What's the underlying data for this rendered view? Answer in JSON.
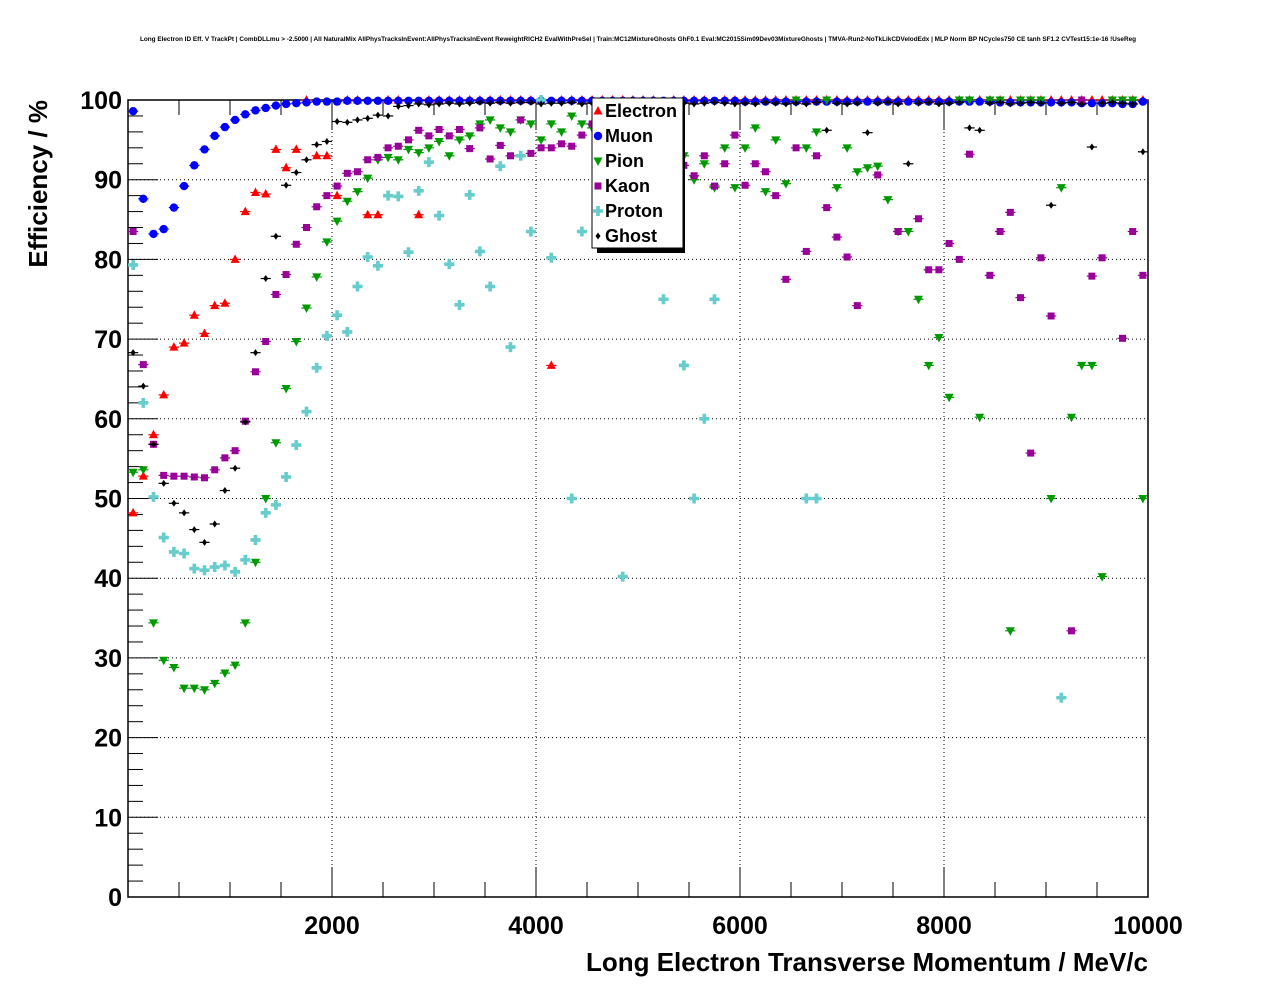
{
  "chart_data": {
    "type": "scatter",
    "title": "Long Electron ID Eff. V TrackPt | CombDLLmu > -2.5000 | All NaturalMix AllPhysTracksInEvent:AllPhysTracksInEvent ReweightRICH2 EvalWithPreSel | Train:MC12MixtureGhosts GhF0.1 Eval:MC2015Sim09Dev03MixtureGhosts | TMVA-Run2-NoTkLikCDVelodEdx | MLP Norm BP NCycles750 CE tanh SF1.2 CVTest15:1e-16 !UseReg",
    "xlabel": "Long Electron Transverse Momentum / MeV/c",
    "ylabel": "Efficiency / %",
    "xlim": [
      0,
      10000
    ],
    "ylim": [
      0,
      100
    ],
    "x_ticks": [
      "2000",
      "4000",
      "6000",
      "8000",
      "10000"
    ],
    "y_ticks": [
      "0",
      "10",
      "20",
      "30",
      "40",
      "50",
      "60",
      "70",
      "80",
      "90",
      "100"
    ],
    "grid": true,
    "legend_position": "top-center",
    "bin_width": 100,
    "x_first_bin_center": 50,
    "series": [
      {
        "name": "Electron",
        "color": "#ff0000",
        "marker": "triangle-up",
        "values": [
          48.2,
          52.8,
          58,
          63,
          69,
          69.5,
          73,
          70.7,
          74.2,
          74.5,
          80,
          86,
          88.4,
          88.2,
          93.8,
          91.5,
          93.8,
          100,
          93,
          93,
          88,
          100,
          100,
          85.6,
          85.6,
          100,
          100,
          null,
          85.6,
          100,
          100,
          100,
          100,
          100,
          100,
          100,
          100,
          100,
          100,
          100,
          null,
          66.7,
          100,
          100,
          100,
          100,
          100,
          100,
          100,
          100,
          100,
          100,
          null,
          100,
          100,
          100,
          100,
          null,
          100,
          100,
          100,
          100,
          100,
          100,
          100,
          100,
          100,
          100,
          100,
          100,
          100,
          100,
          100,
          100,
          100,
          100,
          100,
          100,
          100,
          100,
          100,
          100,
          100,
          100,
          100,
          100,
          100,
          100,
          100,
          100,
          100,
          100,
          100,
          100,
          100,
          100,
          100,
          100,
          100,
          100
        ]
      },
      {
        "name": "Muon",
        "color": "#0000ff",
        "marker": "circle",
        "values": [
          98.6,
          87.6,
          83.2,
          83.8,
          86.5,
          89.2,
          91.8,
          93.8,
          95.5,
          96.6,
          97.5,
          98.2,
          98.7,
          99.0,
          99.3,
          99.5,
          99.6,
          99.7,
          99.8,
          99.8,
          99.8,
          99.9,
          99.9,
          99.9,
          99.9,
          99.9,
          99.9,
          99.9,
          99.9,
          99.9,
          99.9,
          99.9,
          99.9,
          99.9,
          99.9,
          99.9,
          99.9,
          99.9,
          99.9,
          99.9,
          99.9,
          99.9,
          99.9,
          99.9,
          99.9,
          99.9,
          99.9,
          99.9,
          99.9,
          99.9,
          99.9,
          99.9,
          99.9,
          99.9,
          99.9,
          99.9,
          99.9,
          99.9,
          99.9,
          99.9,
          99.8,
          99.8,
          99.8,
          99.8,
          99.8,
          99.8,
          99.8,
          99.8,
          99.8,
          99.8,
          99.8,
          99.8,
          99.8,
          99.8,
          99.8,
          99.8,
          99.8,
          99.8,
          99.8,
          99.8,
          99.8,
          99.8,
          99.8,
          99.8,
          99.8,
          99.7,
          99.7,
          99.7,
          99.7,
          99.7,
          99.7,
          99.7,
          99.7,
          99.6,
          99.6,
          99.6,
          99.6,
          99.5,
          99.5,
          99.8
        ]
      },
      {
        "name": "Pion",
        "color": "#009900",
        "marker": "triangle-down",
        "values": [
          53.3,
          53.6,
          34.4,
          29.7,
          28.8,
          26.2,
          26.2,
          26.0,
          26.8,
          28.1,
          29.1,
          34.4,
          42.0,
          50,
          57,
          63.8,
          69.7,
          73.9,
          77.8,
          82.2,
          84.8,
          87.3,
          88.5,
          90.2,
          92.5,
          92.8,
          92.5,
          93.8,
          93.4,
          94,
          94.8,
          93,
          95,
          95.5,
          97,
          97.5,
          96.5,
          96,
          97.5,
          97,
          95,
          97,
          96,
          98,
          97,
          96.5,
          99,
          97.5,
          98,
          97,
          96,
          98,
          94,
          91,
          93,
          90,
          92,
          89,
          94,
          89,
          94,
          96.5,
          88.5,
          95,
          89.5,
          100,
          94,
          96,
          100,
          89,
          94,
          91,
          91.5,
          91.7,
          87.5,
          83.5,
          83.5,
          75,
          66.7,
          70.2,
          62.7,
          100,
          100,
          60.2,
          100,
          100,
          33.4,
          100,
          100,
          100,
          50,
          89,
          60.2,
          66.7,
          66.7,
          40.2,
          100,
          100,
          100,
          50
        ]
      },
      {
        "name": "Kaon",
        "color": "#990099",
        "marker": "square",
        "values": [
          83.5,
          66.8,
          56.8,
          52.9,
          52.8,
          52.8,
          52.7,
          52.6,
          53.6,
          55.1,
          56,
          59.7,
          65.9,
          69.7,
          75.6,
          78.1,
          81.9,
          84,
          86.6,
          88,
          89.2,
          90.8,
          91,
          92.5,
          92.8,
          94,
          94.2,
          95,
          96.2,
          95.5,
          96.3,
          95.5,
          96.3,
          93.9,
          96.5,
          92.6,
          94.3,
          93,
          97.5,
          93.3,
          94,
          94,
          94.5,
          94.2,
          95.6,
          97,
          96,
          98,
          93,
          96,
          97,
          92.7,
          96,
          93,
          91.8,
          90.5,
          93,
          89.2,
          92,
          95.6,
          89.3,
          92,
          91,
          88,
          77.5,
          94,
          81,
          93,
          86.5,
          82.8,
          80.3,
          74.2,
          null,
          90.6,
          null,
          83.5,
          null,
          85.1,
          78.7,
          78.7,
          82,
          80,
          93.2,
          null,
          78,
          83.5,
          85.9,
          75.2,
          55.7,
          80.2,
          72.9,
          null,
          33.4,
          100,
          77.9,
          80.2,
          null,
          70.1,
          83.5,
          78
        ]
      },
      {
        "name": "Proton",
        "color": "#66cccc",
        "marker": "cross",
        "values": [
          79.3,
          62,
          50.2,
          45.1,
          43.3,
          43.1,
          41.2,
          41,
          41.4,
          41.6,
          40.8,
          42.3,
          44.8,
          48.2,
          49.2,
          52.7,
          56.7,
          60.9,
          66.4,
          70.4,
          73,
          70.9,
          76.6,
          80.3,
          79.2,
          88,
          87.9,
          80.9,
          88.6,
          92.2,
          85.5,
          79.4,
          74.3,
          88.1,
          81,
          76.6,
          91.7,
          69,
          93,
          83.5,
          100,
          80.2,
          null,
          50,
          83.5,
          null,
          null,
          92,
          40.2,
          null,
          null,
          null,
          75,
          null,
          66.7,
          50,
          60,
          75,
          null,
          null,
          null,
          null,
          null,
          null,
          null,
          null,
          50,
          50,
          null,
          null,
          null,
          null,
          null,
          null,
          null,
          null,
          null,
          null,
          null,
          null,
          null,
          null,
          null,
          null,
          null,
          null,
          null,
          null,
          null,
          null,
          null,
          25,
          null,
          null,
          null,
          null,
          null,
          null,
          null,
          null
        ]
      },
      {
        "name": "Ghost",
        "color": "#000000",
        "marker": "diamond",
        "values": [
          68.3,
          64.1,
          56.8,
          51.9,
          49.4,
          48.2,
          46.1,
          44.5,
          46.8,
          51,
          53.8,
          59.6,
          68.3,
          77.6,
          82.9,
          89.3,
          90.9,
          92.5,
          94.4,
          94.8,
          97.3,
          97.2,
          97.5,
          97.7,
          98.1,
          98,
          99.2,
          99.3,
          99.5,
          99.4,
          99.5,
          99.6,
          99.5,
          99.6,
          99.7,
          99.6,
          99.7,
          99.6,
          99.7,
          99.7,
          99.5,
          99.6,
          99.6,
          99.7,
          99.5,
          99.6,
          99.7,
          99.5,
          99.6,
          99.7,
          99.6,
          99.5,
          99.6,
          99.7,
          99.6,
          99.5,
          99.6,
          99.7,
          99.6,
          99.5,
          99.6,
          99.5,
          99.7,
          99.6,
          99.5,
          99.6,
          99.5,
          99.7,
          96.2,
          99.6,
          99.5,
          99.6,
          95.9,
          99.6,
          99.7,
          99.5,
          92,
          99.6,
          99.7,
          99.5,
          99.6,
          99.7,
          96.5,
          96.2,
          99.6,
          99.7,
          99.5,
          99.6,
          99.7,
          99.6,
          86.8,
          99.6,
          99.7,
          99.5,
          94.1,
          99.6,
          99.7,
          99.6,
          99.5,
          93.5
        ]
      }
    ]
  }
}
